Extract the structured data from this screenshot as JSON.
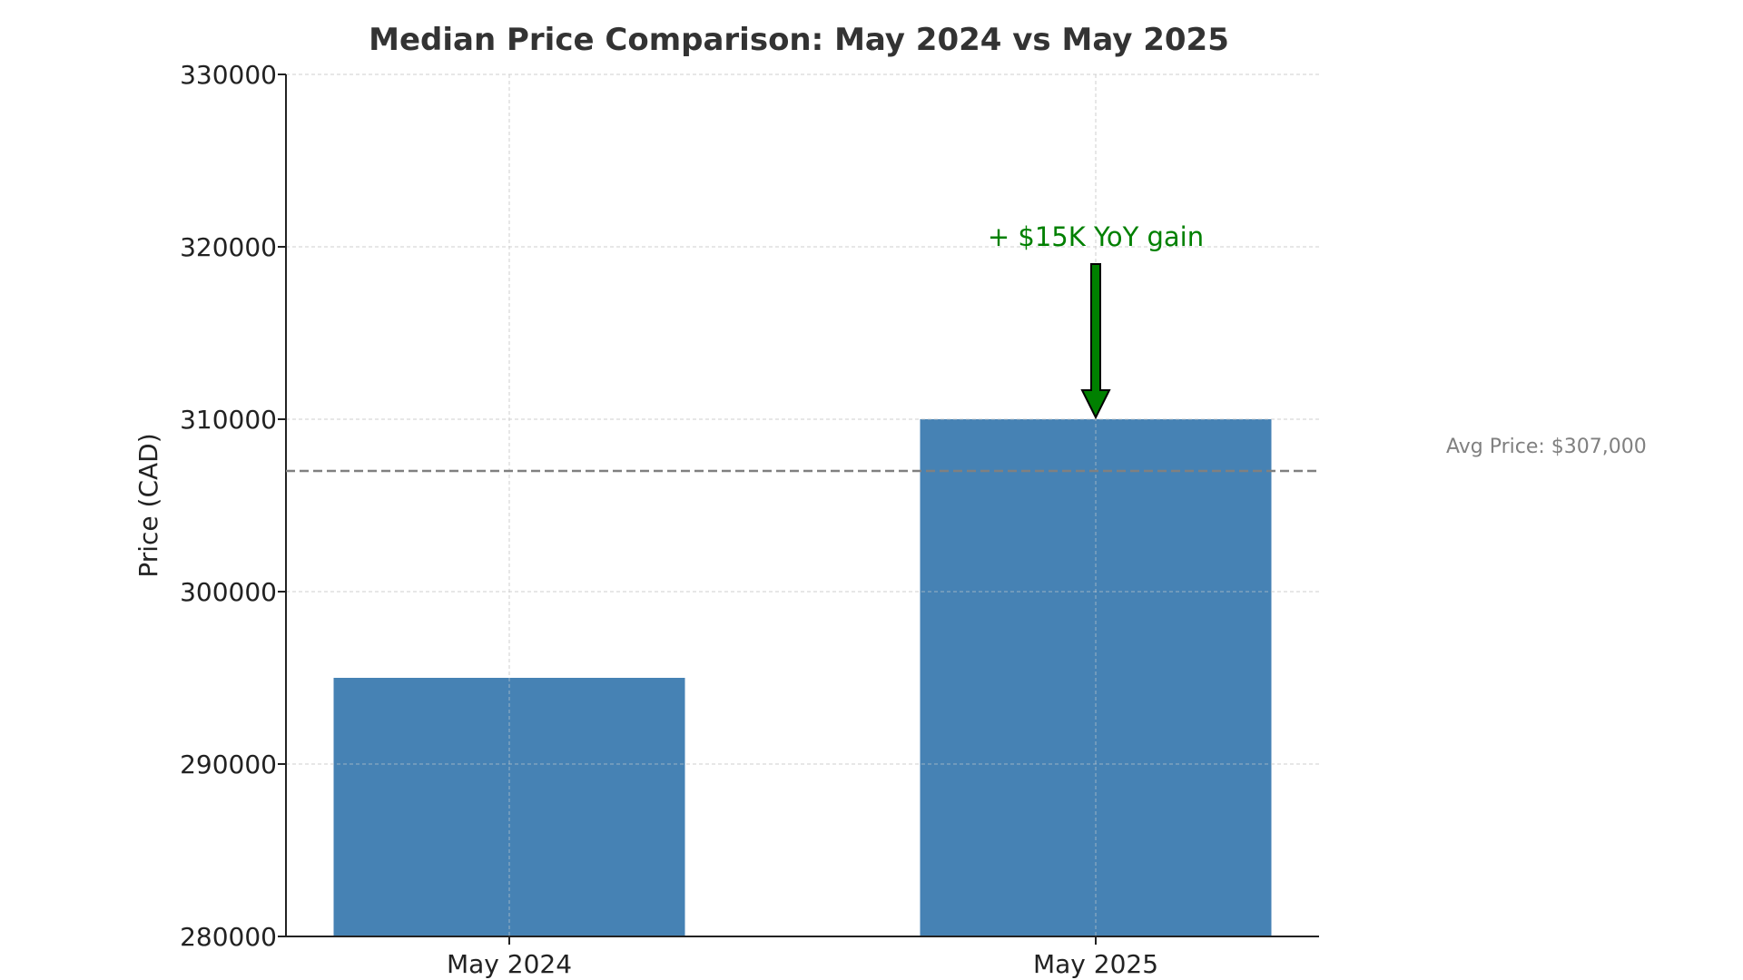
{
  "chart_data": {
    "type": "bar",
    "title": "Median Price Comparison: May 2024 vs May 2025",
    "xlabel": "",
    "ylabel": "Price (CAD)",
    "categories": [
      "May 2024",
      "May 2025"
    ],
    "values": [
      295000,
      310000
    ],
    "ylim": [
      280000,
      330000
    ],
    "yticks": [
      280000,
      290000,
      300000,
      310000,
      320000,
      330000
    ],
    "grid": true,
    "bar_color": "#4682b4",
    "reference_line": {
      "value": 307000,
      "label": "Avg Price: $307,000",
      "color": "#808080",
      "style": "dashed"
    },
    "annotation": {
      "text": "+ $15K YoY gain",
      "category": "May 2025",
      "arrow_from": 319000,
      "arrow_to": 310000,
      "color": "#008000"
    }
  }
}
